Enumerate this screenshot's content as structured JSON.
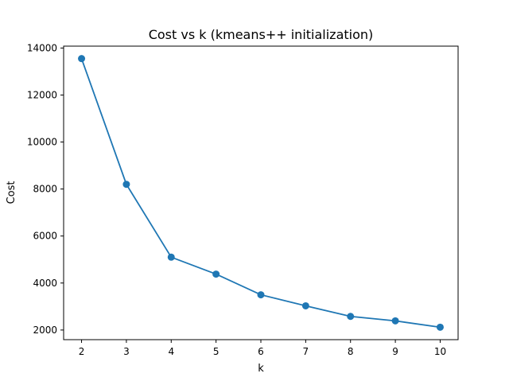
{
  "chart_data": {
    "type": "line",
    "title": "Cost vs k (kmeans++ initialization)",
    "xlabel": "k",
    "ylabel": "Cost",
    "x": [
      2,
      3,
      4,
      5,
      6,
      7,
      8,
      9,
      10
    ],
    "series": [
      {
        "values": [
          13550,
          8200,
          5100,
          4380,
          3500,
          3030,
          2580,
          2390,
          2120
        ],
        "color": "#1f77b4",
        "marker": "circle"
      }
    ],
    "xlim": [
      1.6,
      10.4
    ],
    "ylim": [
      1590,
      14080
    ],
    "xticks": [
      2,
      3,
      4,
      5,
      6,
      7,
      8,
      9,
      10
    ],
    "yticks": [
      2000,
      4000,
      6000,
      8000,
      10000,
      12000,
      14000
    ],
    "grid": false,
    "legend": false
  }
}
